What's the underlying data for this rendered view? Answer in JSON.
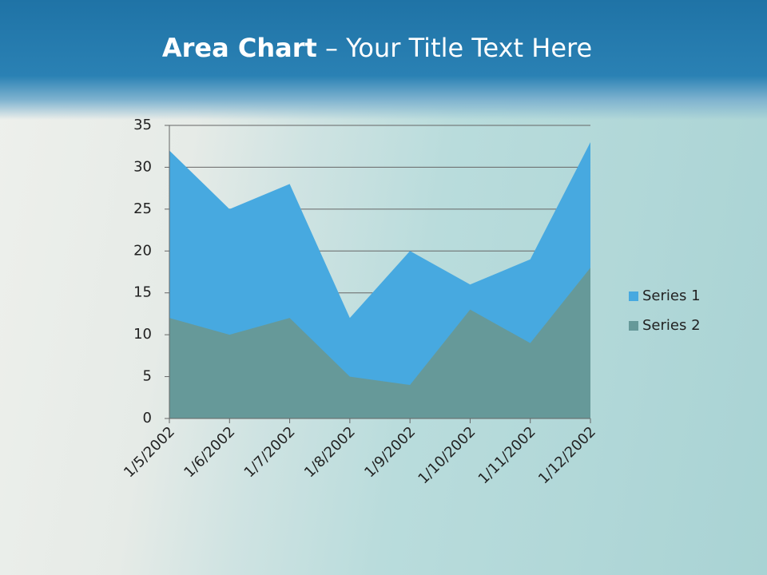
{
  "title": {
    "bold": "Area Chart",
    "rest": "– Your Title Text Here"
  },
  "chart_data": {
    "type": "area",
    "categories": [
      "1/5/2002",
      "1/6/2002",
      "1/7/2002",
      "1/8/2002",
      "1/9/2002",
      "1/10/2002",
      "1/11/2002",
      "1/12/2002"
    ],
    "series": [
      {
        "name": "Series 1",
        "color": "#47a9e0",
        "values": [
          32,
          25,
          28,
          12,
          20,
          16,
          19,
          33
        ]
      },
      {
        "name": "Series 2",
        "color": "#669999",
        "values": [
          12,
          10,
          12,
          5,
          4,
          13,
          9,
          18
        ]
      }
    ],
    "ylim": [
      0,
      35
    ],
    "yticks": [
      0,
      5,
      10,
      15,
      20,
      25,
      30,
      35
    ],
    "grid": true,
    "legend": "right"
  }
}
